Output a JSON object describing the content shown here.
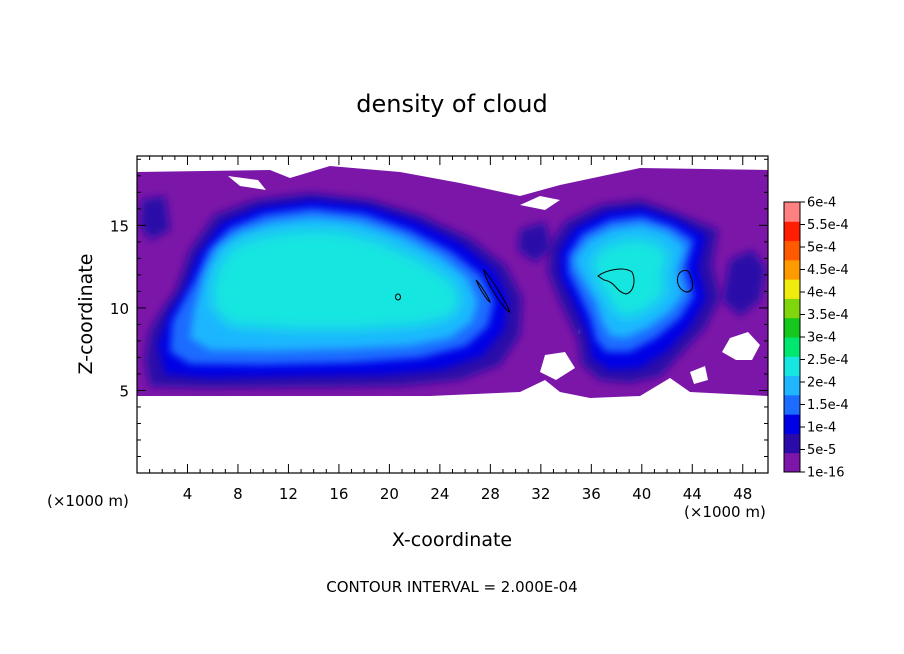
{
  "chart_data": {
    "type": "heatmap",
    "title": "density of cloud",
    "xlabel": "X-coordinate",
    "ylabel": "Z-coordinate",
    "x_unit": "(×1000 m)",
    "x_unit_right": "(×1000 m)",
    "xlim": [
      0,
      50
    ],
    "ylim": [
      0,
      19.2
    ],
    "x_ticks": [
      4,
      8,
      12,
      16,
      20,
      24,
      28,
      32,
      36,
      40,
      44,
      48
    ],
    "y_ticks": [
      5,
      10,
      15
    ],
    "grid": false,
    "contour_interval_text": "CONTOUR INTERVAL = 2.000E-04",
    "colorbar": {
      "labels": [
        "6e-4",
        "5.5e-4",
        "5e-4",
        "4.5e-4",
        "4e-4",
        "3.5e-4",
        "3e-4",
        "2.5e-4",
        "2e-4",
        "1.5e-4",
        "1e-4",
        "5e-5",
        "1e-16"
      ],
      "colors": [
        "#7b16a8",
        "#2a0aa8",
        "#0000e6",
        "#1b6cff",
        "#1fb5ff",
        "#17e6e0",
        "#00e66e",
        "#16c81e",
        "#7fd60c",
        "#f0ea0e",
        "#ff9a00",
        "#ff5a00",
        "#ff1e00",
        "#ff8080"
      ]
    },
    "regions": {
      "cloud_domain_z": [
        5,
        19
      ],
      "left_cloud": {
        "x": [
          0.5,
          31
        ],
        "z": [
          5,
          18.5
        ],
        "max_level": "2e-4"
      },
      "right_cloud": {
        "x": [
          33,
          47
        ],
        "z": [
          5,
          17.5
        ],
        "max_level": "2e-4"
      },
      "contours_at": "2e-4",
      "contour_centers": [
        [
          21,
          11
        ],
        [
          27.8,
          11.5
        ],
        [
          38.8,
          12.5
        ],
        [
          43.5,
          12.5
        ]
      ]
    }
  }
}
